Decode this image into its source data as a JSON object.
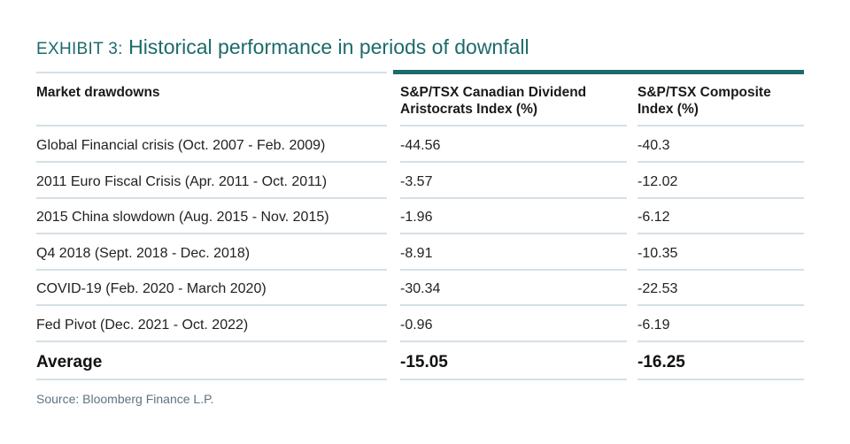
{
  "exhibit": {
    "prefix": "EXHIBIT 3:",
    "title": "Historical performance in periods of downfall"
  },
  "table": {
    "headers": [
      "Market drawdowns",
      "S&P/TSX Canadian Dividend Aristocrats Index (%)",
      "S&P/TSX Composite Index (%)"
    ],
    "rows": [
      {
        "label": "Global Financial crisis (Oct. 2007 - Feb. 2009)",
        "aristocrats": "-44.56",
        "composite": "-40.3"
      },
      {
        "label": "2011 Euro Fiscal Crisis (Apr. 2011 - Oct. 2011)",
        "aristocrats": "-3.57",
        "composite": "-12.02"
      },
      {
        "label": "2015 China slowdown (Aug. 2015 - Nov. 2015)",
        "aristocrats": "-1.96",
        "composite": "-6.12"
      },
      {
        "label": "Q4 2018 (Sept. 2018 - Dec. 2018)",
        "aristocrats": "-8.91",
        "composite": "-10.35"
      },
      {
        "label": "COVID-19 (Feb. 2020 - March 2020)",
        "aristocrats": "-30.34",
        "composite": "-22.53"
      },
      {
        "label": "Fed Pivot (Dec. 2021 - Oct. 2022)",
        "aristocrats": "-0.96",
        "composite": "-6.19"
      }
    ],
    "average": {
      "label": "Average",
      "aristocrats": "-15.05",
      "composite": "-16.25"
    }
  },
  "source": "Source: Bloomberg Finance L.P.",
  "colors": {
    "accent": "#1d6a6a",
    "rule": "#d5dfe6"
  }
}
